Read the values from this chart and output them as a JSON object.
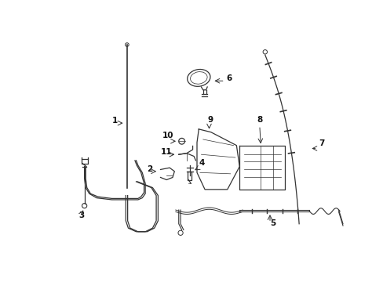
{
  "bg_color": "#ffffff",
  "line_color": "#333333",
  "label_color": "#111111",
  "fig_width": 4.89,
  "fig_height": 3.6,
  "dpi": 100
}
